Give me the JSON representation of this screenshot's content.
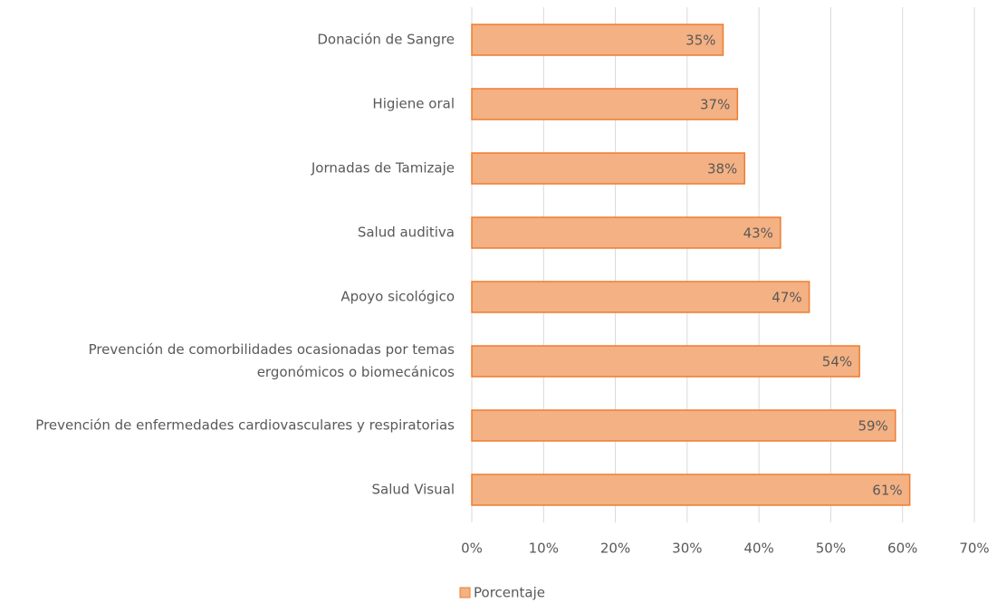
{
  "chart_data": {
    "type": "barh",
    "categories": [
      "Donación de Sangre",
      "Higiene oral",
      "Jornadas de Tamizaje",
      "Salud auditiva",
      "Apoyo sicológico",
      "Prevención de comorbilidades ocasionadas por temas ergonómicos o biomecánicos",
      "Prevención de enfermedades cardiovasculares y respiratorias",
      "Salud Visual"
    ],
    "series": [
      {
        "name": "Porcentaje",
        "color": "#f4b183",
        "values": [
          35,
          37,
          38,
          43,
          47,
          54,
          59,
          61
        ],
        "value_labels": [
          "35%",
          "37%",
          "38%",
          "43%",
          "47%",
          "54%",
          "59%",
          "61%"
        ]
      }
    ],
    "xlim": [
      0,
      70
    ],
    "xticks": [
      {
        "value": 0,
        "label": "0%"
      },
      {
        "value": 10,
        "label": "10%"
      },
      {
        "value": 20,
        "label": "20%"
      },
      {
        "value": 30,
        "label": "30%"
      },
      {
        "value": 40,
        "label": "40%"
      },
      {
        "value": 50,
        "label": "50%"
      },
      {
        "value": 60,
        "label": "60%"
      },
      {
        "value": 70,
        "label": "70%"
      }
    ],
    "grid": true,
    "legend": "bottom"
  }
}
